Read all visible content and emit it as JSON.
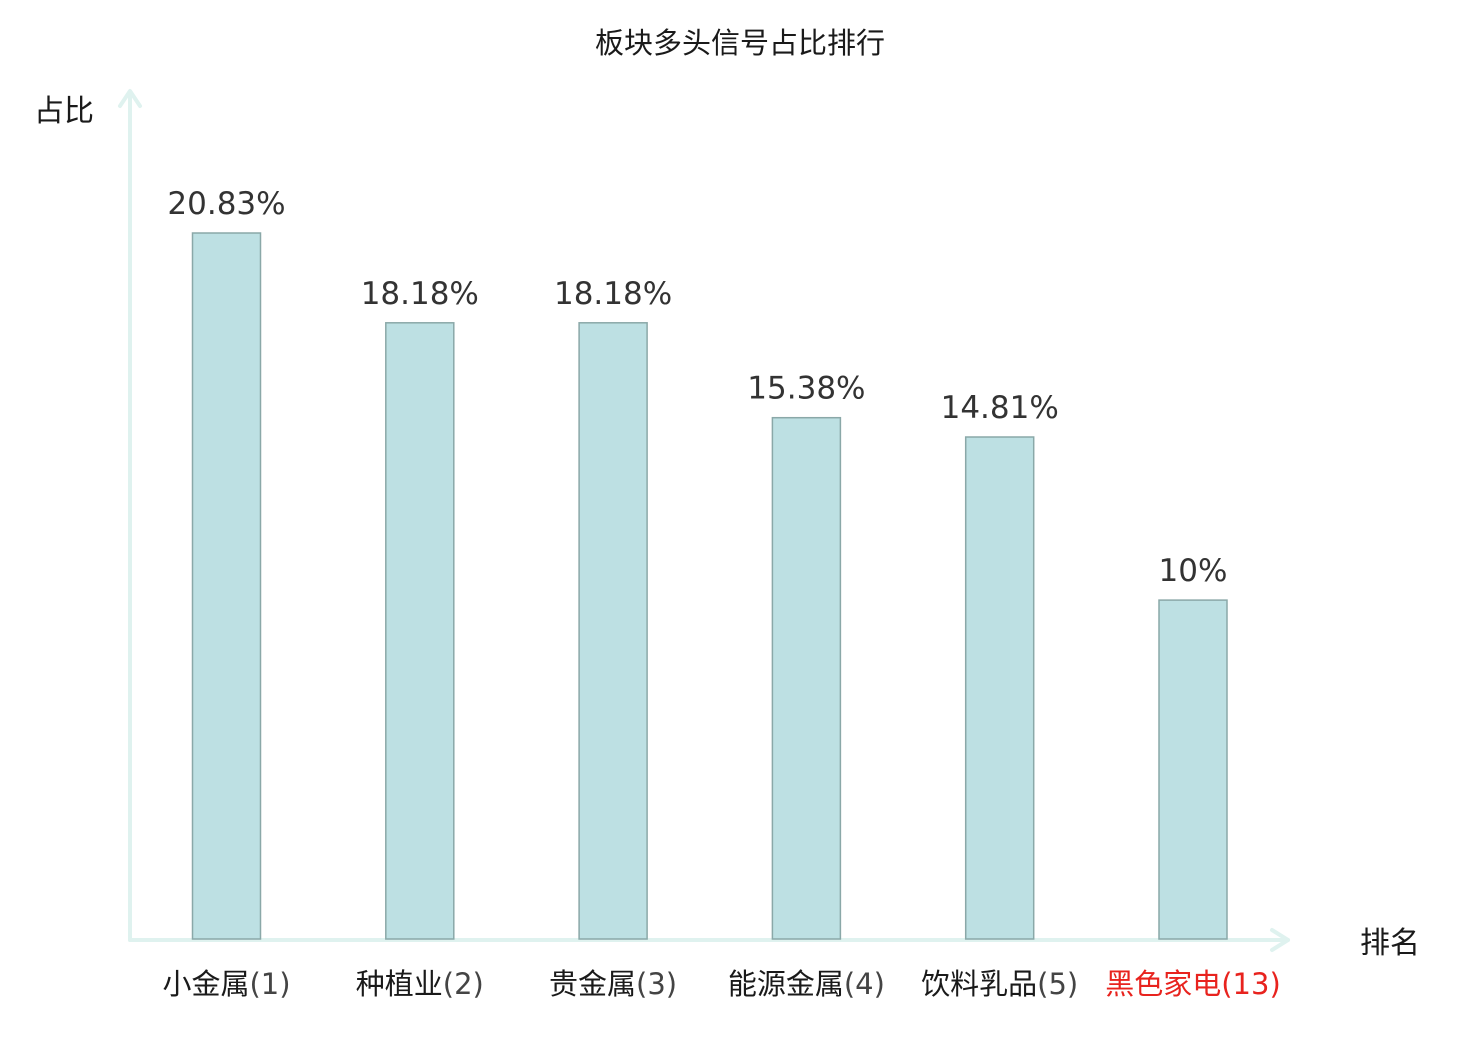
{
  "chart_data": {
    "type": "bar",
    "title": "板块多头信号占比排行",
    "ylabel": "占比",
    "xlabel": "排名",
    "categories": [
      {
        "name": "小金属",
        "rank": "(1)",
        "highlight": false
      },
      {
        "name": "种植业",
        "rank": "(2)",
        "highlight": false
      },
      {
        "name": "贵金属",
        "rank": "(3)",
        "highlight": false
      },
      {
        "name": "能源金属",
        "rank": "(4)",
        "highlight": false
      },
      {
        "name": "饮料乳品",
        "rank": "(5)",
        "highlight": false
      },
      {
        "name": "黑色家电",
        "rank": "(13)",
        "highlight": true
      }
    ],
    "values": [
      20.83,
      18.18,
      18.18,
      15.38,
      14.81,
      10
    ],
    "value_labels": [
      "20.83%",
      "18.18%",
      "18.18%",
      "15.38%",
      "14.81%",
      "10%"
    ],
    "ylim": [
      0,
      20.83
    ],
    "grid": false,
    "legend": "none"
  },
  "colors": {
    "bar_fill": "#bde0e3",
    "bar_stroke": "#8aa8a8",
    "axis": "#dff2ef",
    "highlight": "#e8231e",
    "rank": "#444444",
    "name": "#1a1a1a"
  }
}
